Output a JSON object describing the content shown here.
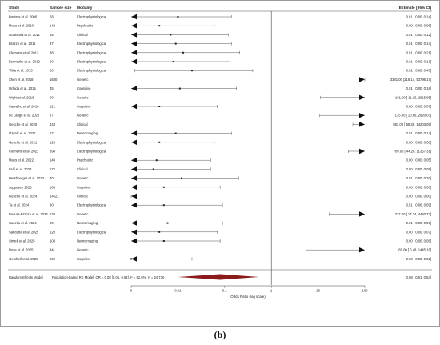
{
  "caption": "(b)",
  "chart_data": {
    "type": "forest",
    "headers": {
      "study": "Study",
      "sample": "Sample size",
      "modality": "Modality",
      "estimate": "Estimate [95% CI]"
    },
    "xlabel": "Odds Ratio (log scale)",
    "x_scale": "log",
    "xlim": [
      0.001,
      100
    ],
    "ticks": [
      {
        "value": 0.001,
        "label": "0"
      },
      {
        "value": 0.01,
        "label": "0.01"
      },
      {
        "value": 0.1,
        "label": "0.1"
      },
      {
        "value": 1,
        "label": "1"
      },
      {
        "value": 10,
        "label": "10"
      },
      {
        "value": 100,
        "label": "100"
      }
    ],
    "reference_line": 1,
    "studies": [
      {
        "study": "Boutros et al. 2006",
        "n": "58",
        "modality": "Electrophysiological",
        "est": 0.01,
        "lo": 0.0,
        "hi": 0.14,
        "ci": "0.01 [ 0.00, 0.14]",
        "left_arrow": true,
        "right_arrow": false
      },
      {
        "study": "Musa et al. 2010",
        "n": "142",
        "modality": "Psychiatric",
        "est": 0.004,
        "lo": 0.0,
        "hi": 0.06,
        "ci": "0.00 [ 0.00, 0.06]",
        "left_arrow": true,
        "right_arrow": false
      },
      {
        "study": "Guarantia et al. 2011",
        "n": "65",
        "modality": "Clinical",
        "est": 0.007,
        "lo": 0.0,
        "hi": 0.12,
        "ci": "0.01 [ 0.00, 0.12]",
        "left_arrow": true,
        "right_arrow": false
      },
      {
        "study": "Brazzo et al. 2011",
        "n": "37",
        "modality": "Electrophysiological",
        "est": 0.009,
        "lo": 0.0,
        "hi": 0.14,
        "ci": "0.01 [ 0.00, 0.14]",
        "left_arrow": true,
        "right_arrow": false
      },
      {
        "study": "Clemens et al. 2012",
        "n": "38",
        "modality": "Electrophysiological",
        "est": 0.013,
        "lo": 0.0,
        "hi": 0.21,
        "ci": "0.01 [ 0.00, 0.21]",
        "left_arrow": true,
        "right_arrow": false
      },
      {
        "study": "Berinczky et al. 2012",
        "n": "60",
        "modality": "Electrophysiological",
        "est": 0.008,
        "lo": 0.0,
        "hi": 0.13,
        "ci": "0.01 [ 0.00, 0.13]",
        "left_arrow": true,
        "right_arrow": false
      },
      {
        "study": "Titka et al. 2013",
        "n": "20",
        "modality": "Electrophysiological",
        "est": 0.02,
        "lo": 0.0012,
        "hi": 0.4,
        "ci": "0.02 [ 0.00, 0.40]",
        "left_arrow": false,
        "right_arrow": false
      },
      {
        "study": "Shen et al. 2018",
        "n": "1680",
        "modality": "Genetic",
        "est": 3381.0,
        "lo": 216.14,
        "hi": 53796.17,
        "ci": "3381.00 [216.14, 53796.17]",
        "left_arrow": false,
        "right_arrow": true
      },
      {
        "study": "Uchida et al. 2015",
        "n": "45",
        "modality": "Cognitive",
        "est": 0.011,
        "lo": 0.0,
        "hi": 0.18,
        "ci": "0.01 [ 0.00, 0.18]",
        "left_arrow": true,
        "right_arrow": false
      },
      {
        "study": "Wight et al. 2016",
        "n": "90",
        "modality": "Genetic",
        "est": 181.0,
        "lo": 11.26,
        "hi": 2915.95,
        "ci": "181.00 [ 11.26, 2915.95]",
        "left_arrow": false,
        "right_arrow": true
      },
      {
        "study": "Carvalho et al. 2016",
        "n": "121",
        "modality": "Cognitive",
        "est": 0.004,
        "lo": 0.0,
        "hi": 0.07,
        "ci": "0.00 [ 0.00, 0.07]",
        "left_arrow": true,
        "right_arrow": false
      },
      {
        "study": "de Lange et al. 2020",
        "n": "87",
        "modality": "Genetic",
        "est": 175.0,
        "lo": 10.86,
        "hi": 2820.03,
        "ci": "175.00 [ 10.86, 2820.03]",
        "left_arrow": false,
        "right_arrow": true
      },
      {
        "study": "Gesche et al. 2020",
        "n": "443",
        "modality": "Clinical",
        "est": 887.0,
        "lo": 55.39,
        "hi": 14203.09,
        "ci": "887.00 [ 55.39, 14203.09]",
        "left_arrow": false,
        "right_arrow": true
      },
      {
        "study": "Özyalk et al. 2021",
        "n": "57",
        "modality": "Neuroimaging",
        "est": 0.009,
        "lo": 0.0,
        "hi": 0.14,
        "ci": "0.01 [ 0.00, 0.14]",
        "left_arrow": true,
        "right_arrow": false
      },
      {
        "study": "Gesche et al. 2021",
        "n": "126",
        "modality": "Electrophysiological",
        "est": 0.004,
        "lo": 0.0,
        "hi": 0.06,
        "ci": "0.00 [ 0.00, 0.06]",
        "left_arrow": true,
        "right_arrow": false
      },
      {
        "study": "Clemens et al. 2021",
        "n": "394",
        "modality": "Electrophysiological",
        "est": 709.0,
        "lo": 44.26,
        "hi": 11357.31,
        "ci": "709.00 [ 44.26, 11357.31]",
        "left_arrow": false,
        "right_arrow": true
      },
      {
        "study": "Maes et al. 2022",
        "n": "148",
        "modality": "Psychiatric",
        "est": 0.0035,
        "lo": 0.0,
        "hi": 0.05,
        "ci": "0.00 [ 0.00, 0.05]",
        "left_arrow": true,
        "right_arrow": false
      },
      {
        "study": "Irelli et al. 2022",
        "n": "172",
        "modality": "Clinical",
        "est": 0.003,
        "lo": 0.0,
        "hi": 0.05,
        "ci": "0.00 [ 0.00, 0.05]",
        "left_arrow": true,
        "right_arrow": false
      },
      {
        "study": "Hershberger et al. 2023",
        "n": "40",
        "modality": "Genetic",
        "est": 0.012,
        "lo": 0.0,
        "hi": 0.2,
        "ci": "0.01 [ 0.00, 0.20]",
        "left_arrow": true,
        "right_arrow": false
      },
      {
        "study": "Jeppesen 2023",
        "n": "108",
        "modality": "Cognitive",
        "est": 0.005,
        "lo": 0.0,
        "hi": 0.08,
        "ci": "0.00 [ 0.00, 0.08]",
        "left_arrow": true,
        "right_arrow": false
      },
      {
        "study": "Gesche et al. 2024",
        "n": "14521",
        "modality": "Clinical",
        "est": 0.0,
        "lo": 0.0,
        "hi": 0.0,
        "ci": "0.00 [ 0.00, 0.00]",
        "left_arrow": true,
        "right_arrow": false
      },
      {
        "study": "Ta et al. 2024",
        "n": "90",
        "modality": "Electrophysiological",
        "est": 0.005,
        "lo": 0.0,
        "hi": 0.09,
        "ci": "0.01 [ 0.00, 0.09]",
        "left_arrow": true,
        "right_arrow": false
      },
      {
        "study": "Badura-Brzoza et al. 2024",
        "n": "138",
        "modality": "Genetic",
        "est": 277.0,
        "lo": 17.24,
        "hi": 4450.73,
        "ci": "277.00 [ 17.24, 4450.73]",
        "left_arrow": false,
        "right_arrow": true
      },
      {
        "study": "Casella et al. 2024",
        "n": "89",
        "modality": "Neuroimaging",
        "est": 0.006,
        "lo": 0.0,
        "hi": 0.09,
        "ci": "0.01 [ 0.00, 0.09]",
        "left_arrow": true,
        "right_arrow": false
      },
      {
        "study": "Sancetta et al. 2025",
        "n": "120",
        "modality": "Electrophysiological",
        "est": 0.004,
        "lo": 0.0,
        "hi": 0.07,
        "ci": "0.00 [ 0.00, 0.07]",
        "left_arrow": true,
        "right_arrow": false
      },
      {
        "study": "Struck et al. 2025",
        "n": "104",
        "modality": "Neuroimaging",
        "est": 0.005,
        "lo": 0.0,
        "hi": 0.08,
        "ci": "0.00 [ 0.00, 0.08]",
        "left_arrow": true,
        "right_arrow": false
      },
      {
        "study": "Rose et al. 2025",
        "n": "44",
        "modality": "Genetic",
        "est": 89.0,
        "lo": 5.48,
        "hi": 1445.16,
        "ci": "89.00 [ 5.48, 1445.16]",
        "left_arrow": false,
        "right_arrow": true
      },
      {
        "study": "Gemfrell et al. 2025",
        "n": "502",
        "modality": "Cognitive",
        "est": 0.001,
        "lo": 0.0,
        "hi": 0.02,
        "ci": "0.00 [ 0.00, 0.02]",
        "left_arrow": true,
        "right_arrow": false
      }
    ],
    "summary": {
      "label": "Random-Effects Model",
      "description": "Population-based RE Model: OR = 0.08 [0.01, 0.54], I² = 92.5%, τ² = 24.730",
      "est": 0.08,
      "lo": 0.01,
      "hi": 0.54,
      "ci": "0.08 [ 0.01, 0.54]",
      "color": "#8b1a1a"
    }
  }
}
